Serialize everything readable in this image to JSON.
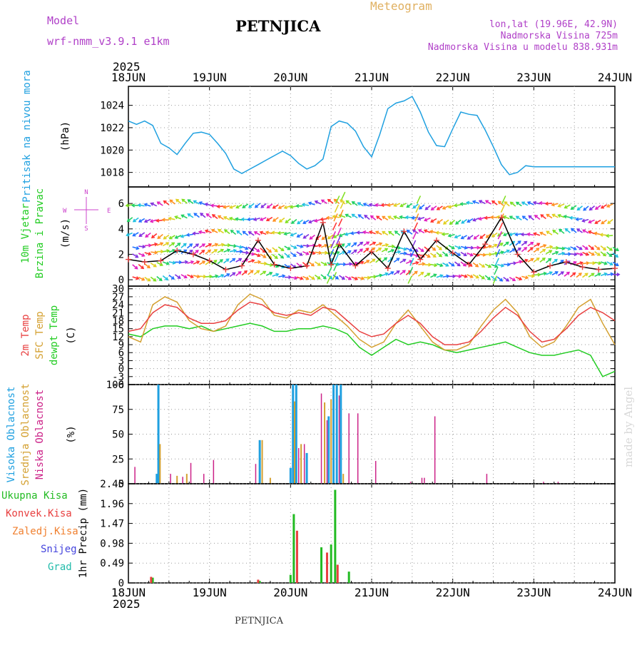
{
  "header": {
    "model_label": "Model",
    "model_name": "wrf-nmm_v3.9.1 e1km",
    "station": "PETNJICA",
    "chart_type": "Meteogram",
    "lonlat": "lon,lat (19.96E, 42.9N)",
    "elevation": "Nadmorska Visina 725m",
    "model_elevation": "Nadmorska Visina u modelu 838.931m",
    "year_top": "2025",
    "year_bottom": "2025",
    "footer_station": "PETNJICA",
    "watermark": "made by Angel"
  },
  "time_axis": {
    "labels": [
      "18JUN",
      "19JUN",
      "20JUN",
      "21JUN",
      "22JUN",
      "23JUN",
      "24JUN"
    ]
  },
  "colors": {
    "pressure": "#1fa0e0",
    "wind_label": "#22cc22",
    "wind_dir_label": "#cc44cc",
    "t2m": "#e84040",
    "tsfc": "#d4a030",
    "dewpt": "#22cc22",
    "cloud_high": "#1fa0e0",
    "cloud_mid": "#d4a030",
    "cloud_low": "#cc2288",
    "precip_total": "#22bb22",
    "precip_conv": "#e84040",
    "precip_frz": "#f08030",
    "precip_snow": "#4444dd",
    "precip_hail": "#22bbaa",
    "header_purple": "#b040c8",
    "header_orange": "#e0b060"
  },
  "chart_data": [
    {
      "type": "line",
      "panel": "pressure",
      "ylabel": "(hPa)",
      "side_label": "Pritisak na nivou mora",
      "ylim": [
        1016.7,
        1025.7
      ],
      "yticks": [
        1018,
        1020,
        1022,
        1024
      ],
      "grid": true,
      "series": [
        {
          "color": "#1fa0e0",
          "x": [
            0,
            0.1,
            0.2,
            0.3,
            0.4,
            0.5,
            0.6,
            0.7,
            0.8,
            0.9,
            1.0,
            1.1,
            1.2,
            1.3,
            1.4,
            1.5,
            1.6,
            1.7,
            1.8,
            1.9,
            2.0,
            2.1,
            2.2,
            2.3,
            2.4,
            2.5,
            2.6,
            2.7,
            2.8,
            2.9,
            3.0,
            3.1,
            3.2,
            3.3,
            3.4,
            3.5,
            3.6,
            3.7,
            3.8,
            3.9,
            4.0,
            4.1,
            4.2,
            4.3,
            4.4,
            4.5,
            4.6,
            4.7,
            4.8,
            4.9,
            5.0,
            5.1,
            5.2,
            5.3,
            5.4,
            5.5,
            5.6,
            5.7,
            5.8,
            5.9,
            6.0
          ],
          "values": [
            1022.6,
            1022.3,
            1022.6,
            1022.2,
            1020.6,
            1020.2,
            1019.6,
            1020.6,
            1021.5,
            1021.6,
            1021.4,
            1020.6,
            1019.7,
            1018.3,
            1017.9,
            1018.3,
            1018.7,
            1019.1,
            1019.5,
            1019.9,
            1019.5,
            1018.8,
            1018.3,
            1018.6,
            1019.2,
            1022.1,
            1022.6,
            1022.4,
            1021.7,
            1020.3,
            1019.4,
            1021.4,
            1023.7,
            1024.2,
            1024.4,
            1024.8,
            1023.4,
            1021.6,
            1020.4,
            1020.3,
            1021.9,
            1023.4,
            1023.2,
            1023.1,
            1021.8,
            1020.3,
            1018.7,
            1017.8,
            1018.0,
            1018.6,
            1018.5,
            1018.5,
            1018.5,
            1018.5,
            1018.5,
            1018.5,
            1018.5,
            1018.5,
            1018.5,
            1018.5,
            1018.5
          ]
        }
      ]
    },
    {
      "type": "line",
      "panel": "wind",
      "ylabel": "(m/s)",
      "side_label": "10m Vjetar",
      "side_label_2": "Brzina i Pravac",
      "compass": {
        "n": "N",
        "w": "W",
        "e": "E",
        "s": "S"
      },
      "ylim": [
        -0.5,
        7.3
      ],
      "yticks": [
        0,
        2,
        4,
        6
      ],
      "grid": true,
      "series": [
        {
          "color": "#000000",
          "x": [
            0,
            0.2,
            0.4,
            0.6,
            0.8,
            1.0,
            1.2,
            1.4,
            1.6,
            1.8,
            2.0,
            2.2,
            2.4,
            2.5,
            2.6,
            2.8,
            3.0,
            3.2,
            3.4,
            3.6,
            3.8,
            4.0,
            4.2,
            4.4,
            4.6,
            4.8,
            5.0,
            5.2,
            5.4,
            5.6,
            5.8,
            6.0
          ],
          "values": [
            1.6,
            1.4,
            1.5,
            2.3,
            2.0,
            1.5,
            0.8,
            1.1,
            3.1,
            1.2,
            0.9,
            1.1,
            4.5,
            1.2,
            2.8,
            1.1,
            2.2,
            0.9,
            3.8,
            1.6,
            3.1,
            2.1,
            1.2,
            2.8,
            4.9,
            2.0,
            0.6,
            1.1,
            1.4,
            1.0,
            0.8,
            0.9
          ]
        }
      ]
    },
    {
      "type": "line",
      "panel": "temperature",
      "ylabel": "(C)",
      "side_label_1": "2m Temp",
      "side_label_2": "SFC Temp",
      "side_label_3": "dewpt Temp",
      "ylim": [
        -6,
        31
      ],
      "yticks": [
        -6,
        -3,
        0,
        3,
        6,
        9,
        12,
        15,
        18,
        21,
        24,
        27,
        30
      ],
      "grid": true,
      "series": [
        {
          "name": "2m Temp",
          "color": "#e84040",
          "x": [
            0,
            0.15,
            0.3,
            0.45,
            0.6,
            0.75,
            0.9,
            1.05,
            1.2,
            1.35,
            1.5,
            1.65,
            1.8,
            1.95,
            2.1,
            2.25,
            2.4,
            2.55,
            2.7,
            2.85,
            3.0,
            3.15,
            3.3,
            3.45,
            3.6,
            3.75,
            3.9,
            4.05,
            4.2,
            4.35,
            4.5,
            4.65,
            4.8,
            4.95,
            5.1,
            5.25,
            5.4,
            5.55,
            5.7,
            5.85,
            6.0
          ],
          "values": [
            14,
            15,
            21,
            24,
            23,
            19,
            17,
            17,
            18,
            22,
            25,
            24,
            21,
            20,
            21,
            20,
            23,
            22,
            18,
            14,
            12,
            13,
            17,
            20,
            17,
            12,
            9,
            9,
            10,
            14,
            19,
            23,
            20,
            14,
            10,
            11,
            15,
            20,
            23,
            21,
            18
          ]
        },
        {
          "name": "SFC Temp",
          "color": "#d4a030",
          "x": [
            0,
            0.15,
            0.3,
            0.45,
            0.6,
            0.75,
            0.9,
            1.05,
            1.2,
            1.35,
            1.5,
            1.65,
            1.8,
            1.95,
            2.1,
            2.25,
            2.4,
            2.55,
            2.7,
            2.85,
            3.0,
            3.15,
            3.3,
            3.45,
            3.6,
            3.75,
            3.9,
            4.05,
            4.2,
            4.35,
            4.5,
            4.65,
            4.8,
            4.95,
            5.1,
            5.25,
            5.4,
            5.55,
            5.7,
            5.85,
            6.0
          ],
          "values": [
            12,
            10,
            24,
            27,
            25,
            18,
            15,
            14,
            16,
            24,
            28,
            26,
            20,
            19,
            22,
            21,
            24,
            20,
            16,
            11,
            8,
            10,
            17,
            22,
            16,
            10,
            7,
            7,
            9,
            16,
            22,
            26,
            21,
            12,
            8,
            10,
            16,
            23,
            26,
            17,
            9
          ]
        },
        {
          "name": "dewpt Temp",
          "color": "#22cc22",
          "x": [
            0,
            0.15,
            0.3,
            0.45,
            0.6,
            0.75,
            0.9,
            1.05,
            1.2,
            1.35,
            1.5,
            1.65,
            1.8,
            1.95,
            2.1,
            2.25,
            2.4,
            2.55,
            2.7,
            2.85,
            3.0,
            3.15,
            3.3,
            3.45,
            3.6,
            3.75,
            3.9,
            4.05,
            4.2,
            4.35,
            4.5,
            4.65,
            4.8,
            4.95,
            5.1,
            5.25,
            5.4,
            5.55,
            5.7,
            5.85,
            6.0
          ],
          "values": [
            13,
            12,
            15,
            16,
            16,
            15,
            16,
            14,
            15,
            16,
            17,
            16,
            14,
            14,
            15,
            15,
            16,
            15,
            13,
            8,
            5,
            8,
            11,
            9,
            10,
            9,
            7,
            6,
            7,
            8,
            9,
            10,
            8,
            6,
            5,
            5,
            6,
            7,
            5,
            -3,
            -1
          ]
        }
      ]
    },
    {
      "type": "bar",
      "panel": "cloud",
      "ylabel": "(%)",
      "side_label_1": "Visoka Oblacnost",
      "side_label_2": "Srednja Oblacnost",
      "side_label_3": "Niska Oblacnost",
      "ylim": [
        0,
        100
      ],
      "yticks": [
        0,
        25,
        50,
        75,
        100
      ],
      "grid": true,
      "series": [
        {
          "name": "Visoka Oblacnost",
          "color": "#1fa0e0",
          "x": [
            0.35,
            0.37,
            1.62,
            2.0,
            2.03,
            2.07,
            2.2,
            2.47,
            2.53,
            2.57,
            2.62
          ],
          "values": [
            10,
            100,
            44,
            16,
            100,
            100,
            31,
            68,
            100,
            100,
            100
          ]
        },
        {
          "name": "Srednja Oblacnost",
          "color": "#d4a030",
          "x": [
            0.39,
            0.6,
            0.72,
            1.65,
            1.75,
            2.05,
            2.13,
            2.42,
            2.5,
            2.65
          ],
          "values": [
            40,
            8,
            10,
            44,
            6,
            83,
            40,
            82,
            85,
            10
          ]
        },
        {
          "name": "Niska Oblacnost",
          "color": "#cc2288",
          "x": [
            0.08,
            0.52,
            0.67,
            0.77,
            0.93,
            1.05,
            1.57,
            2.1,
            2.17,
            2.38,
            2.45,
            2.6,
            2.72,
            2.83,
            3.05,
            3.48,
            3.62,
            3.65,
            3.78,
            4.42,
            5.12,
            5.3
          ],
          "values": [
            17,
            10,
            7,
            21,
            10,
            24,
            20,
            36,
            40,
            91,
            64,
            89,
            71,
            71,
            23,
            2,
            6,
            6,
            68,
            10,
            2,
            2
          ]
        }
      ]
    },
    {
      "type": "bar",
      "panel": "precip",
      "ylabel": "1hr Precip (mm)",
      "side_label_1": "Ukupna Kisa",
      "side_label_2": "Konvek.Kisa",
      "side_label_3": "Zaledj.Kisa",
      "side_label_4": "Snijeg",
      "side_label_5": "Grad",
      "ylim": [
        0,
        2.45
      ],
      "yticks": [
        0,
        0.49,
        0.98,
        1.47,
        1.96,
        2.45
      ],
      "ytick_labels": [
        "0",
        "0.49",
        "0.98",
        "1.47",
        "1.96",
        "2.45"
      ],
      "grid": true,
      "series": [
        {
          "name": "Ukupna Kisa",
          "color": "#22bb22",
          "x": [
            0.3,
            1.62,
            2.0,
            2.04,
            2.38,
            2.5,
            2.55,
            2.72
          ],
          "values": [
            0.13,
            0.05,
            0.2,
            1.7,
            0.88,
            0.95,
            2.3,
            0.28
          ]
        },
        {
          "name": "Konvek.Kisa",
          "color": "#e84040",
          "x": [
            0.28,
            1.6,
            2.08,
            2.45,
            2.58
          ],
          "values": [
            0.15,
            0.08,
            1.29,
            0.75,
            0.45
          ]
        }
      ]
    }
  ]
}
